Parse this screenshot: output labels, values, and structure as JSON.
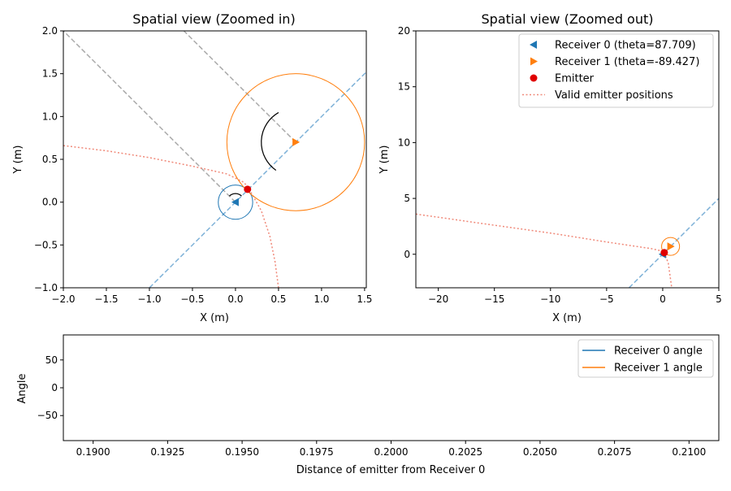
{
  "chart_data": [
    {
      "type": "scatter",
      "title": "Spatial view (Zoomed in)",
      "xlabel": "X (m)",
      "ylabel": "Y (m)",
      "xlim": [
        -2.0,
        1.52
      ],
      "ylim": [
        -1.0,
        2.0
      ],
      "xticks": [
        -2.0,
        -1.5,
        -1.0,
        -0.5,
        0.0,
        0.5,
        1.0,
        1.5
      ],
      "yticks": [
        -1.0,
        -0.5,
        0.0,
        0.5,
        1.0,
        1.5,
        2.0
      ],
      "xtick_labels": [
        "−2.0",
        "−1.5",
        "−1.0",
        "−0.5",
        "0.0",
        "0.5",
        "1.0",
        "1.5"
      ],
      "ytick_labels": [
        "−1.0",
        "−0.5",
        "0.0",
        "0.5",
        "1.0",
        "1.5",
        "2.0"
      ],
      "grid": false,
      "receivers": [
        {
          "x": 0.0,
          "y": 0.0,
          "marker": "triangle-left",
          "color": "#1f77b4",
          "circle_radius": 0.2
        },
        {
          "x": 0.7,
          "y": 0.7,
          "marker": "triangle-right",
          "color": "#ff7f0e",
          "circle_radius": 0.8
        }
      ],
      "emitter": {
        "x": 0.14,
        "y": 0.15,
        "color": "#e00000"
      },
      "lines": [
        {
          "kind": "dashed",
          "color": "#aaaaaa",
          "points": [
            [
              0.0,
              0.0
            ],
            [
              -2.0,
              2.0
            ]
          ]
        },
        {
          "kind": "dashed",
          "color": "#aaaaaa",
          "points": [
            [
              0.7,
              0.7
            ],
            [
              -0.6,
              2.0
            ]
          ]
        },
        {
          "kind": "dashed",
          "color": "#7fb2d8",
          "points": [
            [
              -1.0,
              -1.0
            ],
            [
              1.52,
              1.52
            ]
          ]
        },
        {
          "kind": "dotted",
          "color": "#f08a7a",
          "points": [
            [
              -2.0,
              0.66
            ],
            [
              -1.5,
              0.6
            ],
            [
              -1.0,
              0.52
            ],
            [
              -0.5,
              0.42
            ],
            [
              -0.1,
              0.33
            ],
            [
              0.1,
              0.23
            ],
            [
              0.16,
              0.15
            ],
            [
              0.3,
              -0.1
            ],
            [
              0.4,
              -0.4
            ],
            [
              0.46,
              -0.7
            ],
            [
              0.5,
              -1.0
            ]
          ]
        }
      ],
      "arcs": [
        {
          "cx": 0.7,
          "cy": 0.7,
          "r": 0.4,
          "a0": 120,
          "a1": 235
        },
        {
          "cx": 0.0,
          "cy": 0.0,
          "r": 0.1,
          "a0": 45,
          "a1": 135
        }
      ]
    },
    {
      "type": "scatter",
      "title": "Spatial view (Zoomed out)",
      "xlabel": "X (m)",
      "ylabel": "Y (m)",
      "xlim": [
        -22.0,
        5.0
      ],
      "ylim": [
        -3.0,
        20.0
      ],
      "xticks": [
        -20,
        -15,
        -10,
        -5,
        0,
        5
      ],
      "yticks": [
        0,
        5,
        10,
        15,
        20
      ],
      "xtick_labels": [
        "−20",
        "−15",
        "−10",
        "−5",
        "0",
        "5"
      ],
      "ytick_labels": [
        "0",
        "5",
        "10",
        "15",
        "20"
      ],
      "grid": false,
      "receivers": [
        {
          "x": 0.0,
          "y": 0.0,
          "marker": "triangle-left",
          "color": "#1f77b4"
        },
        {
          "x": 0.7,
          "y": 0.7,
          "marker": "triangle-right",
          "color": "#ff7f0e",
          "circle_radius": 0.8
        }
      ],
      "emitter": {
        "x": 0.14,
        "y": 0.15,
        "color": "#e00000"
      },
      "lines": [
        {
          "kind": "dashed",
          "color": "#7fb2d8",
          "points": [
            [
              -3.0,
              -3.0
            ],
            [
              5.0,
              5.0
            ]
          ]
        },
        {
          "kind": "dotted",
          "color": "#f08a7a",
          "points": [
            [
              -22.0,
              3.6
            ],
            [
              -15.0,
              2.6
            ],
            [
              -10.0,
              1.9
            ],
            [
              -5.0,
              1.1
            ],
            [
              -1.0,
              0.5
            ],
            [
              0.1,
              0.25
            ],
            [
              0.5,
              -0.8
            ],
            [
              0.8,
              -3.0
            ]
          ]
        }
      ],
      "legend": {
        "placement": "top-right",
        "entries": [
          {
            "label": "Receiver 0 (theta=87.709)",
            "marker": "triangle-left",
            "color": "#1f77b4"
          },
          {
            "label": "Receiver 1 (theta=-89.427)",
            "marker": "triangle-right",
            "color": "#ff7f0e"
          },
          {
            "label": "Emitter",
            "marker": "circle",
            "color": "#e00000"
          },
          {
            "label": "Valid emitter positions",
            "marker": "dotted-line",
            "color": "#f08a7a"
          }
        ]
      }
    },
    {
      "type": "line",
      "title": "",
      "xlabel": "Distance of emitter from Receiver 0",
      "ylabel": "Angle",
      "xlim": [
        0.189,
        0.211
      ],
      "ylim": [
        -95,
        95
      ],
      "xticks": [
        0.19,
        0.1925,
        0.195,
        0.1975,
        0.2,
        0.2025,
        0.205,
        0.2075,
        0.21
      ],
      "yticks": [
        -50,
        0,
        50
      ],
      "xtick_labels": [
        "0.1900",
        "0.1925",
        "0.1950",
        "0.1975",
        "0.2000",
        "0.2025",
        "0.2050",
        "0.2075",
        "0.2100"
      ],
      "ytick_labels": [
        "−50",
        "0",
        "50"
      ],
      "grid": false,
      "series": [
        {
          "name": "Receiver 0 angle",
          "color": "#1f77b4",
          "values": []
        },
        {
          "name": "Receiver 1 angle",
          "color": "#ff7f0e",
          "values": []
        }
      ],
      "legend": {
        "placement": "top-right"
      }
    }
  ]
}
